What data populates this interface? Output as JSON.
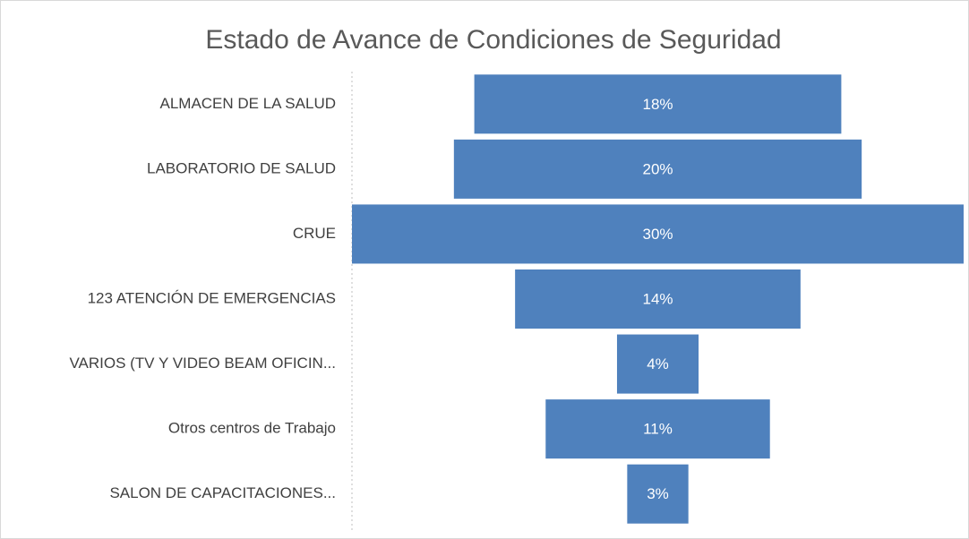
{
  "chart_data": {
    "type": "funnel",
    "title": "Estado de Avance de Condiciones de Seguridad",
    "categories": [
      "ALMACEN DE LA SALUD",
      "LABORATORIO DE  SALUD",
      "CRUE",
      "123 ATENCIÓN DE EMERGENCIAS",
      "VARIOS (TV Y VIDEO BEAM OFICIN...",
      "Otros centros de Trabajo",
      "SALON DE CAPACITACIONES..."
    ],
    "values": [
      18,
      20,
      30,
      14,
      4,
      11,
      3
    ],
    "value_labels": [
      "18%",
      "20%",
      "30%",
      "14%",
      "4%",
      "11%",
      "3%"
    ],
    "color": "#4f81bd"
  }
}
